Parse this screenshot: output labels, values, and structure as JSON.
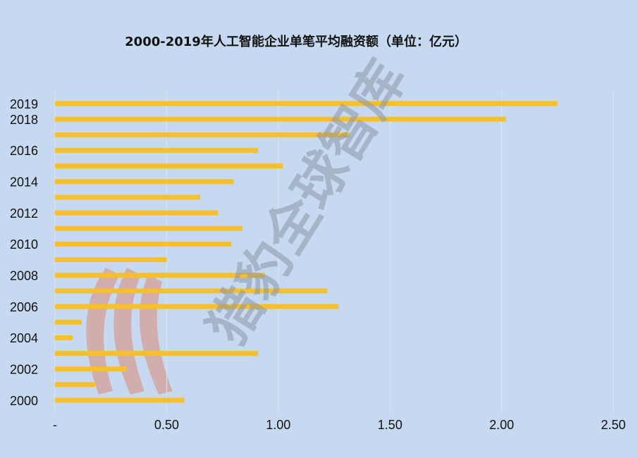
{
  "chart_data": {
    "type": "bar",
    "orientation": "horizontal",
    "title": "2000-2019年人工智能企业单笔平均融资额（单位：亿元）",
    "watermark": "猎豹全球智库",
    "categories": [
      "2019",
      "2018",
      null,
      "2016",
      null,
      "2014",
      null,
      "2012",
      null,
      "2010",
      null,
      "2008",
      null,
      "2006",
      null,
      "2004",
      null,
      "2002",
      null,
      "2000"
    ],
    "values": [
      2.25,
      2.02,
      1.32,
      0.91,
      1.02,
      0.8,
      0.65,
      0.73,
      0.84,
      0.79,
      0.5,
      0.94,
      1.22,
      1.27,
      0.12,
      0.08,
      0.91,
      0.32,
      0.18,
      0.58
    ],
    "color": "#f5c02c",
    "xlim": [
      0,
      2.5
    ],
    "xticks": [
      {
        "value": 0,
        "label": "-"
      },
      {
        "value": 0.5,
        "label": "0.50"
      },
      {
        "value": 1,
        "label": "1.00"
      },
      {
        "value": 1.5,
        "label": "1.50"
      },
      {
        "value": 2,
        "label": "2.00"
      },
      {
        "value": 2.5,
        "label": "2.50"
      }
    ],
    "grid": true
  }
}
